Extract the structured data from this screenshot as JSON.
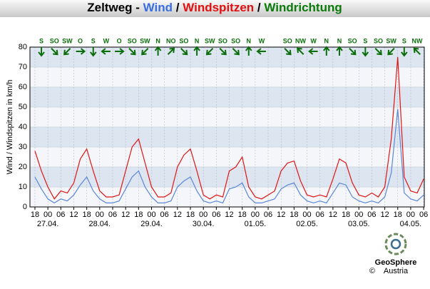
{
  "chart_data": {
    "type": "line",
    "title_parts": [
      {
        "text": "Zeltweg - ",
        "color": "#000000"
      },
      {
        "text": "Wind",
        "color": "#3a6fe0"
      },
      {
        "text": " / ",
        "color": "#000000"
      },
      {
        "text": "Windspitzen",
        "color": "#e01010"
      },
      {
        "text": " / ",
        "color": "#000000"
      },
      {
        "text": "Windrichtung",
        "color": "#0a7a0a"
      }
    ],
    "y_label": "Wind / Windspitzen in km/h",
    "x": [
      18,
      21,
      24,
      27,
      30,
      33,
      36,
      39,
      42,
      45,
      48,
      51,
      54,
      57,
      60,
      63,
      66,
      69,
      72,
      75,
      78,
      81,
      84,
      87,
      90,
      93,
      96,
      99,
      102,
      105,
      108,
      111,
      114,
      117,
      120,
      123,
      126,
      129,
      132,
      135,
      138,
      141,
      144,
      147,
      150,
      153,
      156,
      159,
      162,
      165,
      168,
      171,
      174,
      177,
      180,
      183,
      186,
      189,
      192,
      195,
      198
    ],
    "series": [
      {
        "name": "Wind",
        "color": "#5b86d8",
        "values": [
          15,
          9,
          4,
          2,
          4,
          3,
          6,
          11,
          15,
          8,
          4,
          2,
          2,
          3,
          9,
          15,
          18,
          10,
          5,
          2,
          2,
          3,
          10,
          13,
          15,
          8,
          3,
          2,
          3,
          2,
          9,
          10,
          12,
          5,
          2,
          2,
          3,
          4,
          9,
          11,
          12,
          6,
          3,
          2,
          3,
          2,
          7,
          12,
          11,
          5,
          3,
          2,
          3,
          2,
          5,
          17,
          49,
          7,
          4,
          3,
          6
        ]
      },
      {
        "name": "Windspitzen",
        "color": "#e01515",
        "values": [
          28,
          18,
          10,
          4,
          8,
          7,
          12,
          24,
          29,
          18,
          8,
          5,
          5,
          6,
          18,
          30,
          34,
          22,
          10,
          5,
          5,
          7,
          20,
          26,
          29,
          18,
          6,
          4,
          6,
          5,
          18,
          20,
          25,
          10,
          5,
          4,
          6,
          8,
          18,
          22,
          23,
          13,
          6,
          5,
          6,
          5,
          14,
          24,
          22,
          12,
          6,
          5,
          7,
          5,
          10,
          34,
          75,
          15,
          8,
          7,
          14
        ]
      }
    ],
    "xlim": [
      15.7,
      198.3
    ],
    "ylim": [
      0,
      80
    ],
    "yticks": [
      0,
      10,
      20,
      30,
      40,
      50,
      60,
      70,
      80
    ],
    "grid": true,
    "xticks": [
      {
        "value": 18,
        "label": "18"
      },
      {
        "value": 24,
        "label": "00"
      },
      {
        "value": 30,
        "label": "06"
      },
      {
        "value": 36,
        "label": "12"
      },
      {
        "value": 42,
        "label": "18"
      },
      {
        "value": 48,
        "label": "00"
      },
      {
        "value": 54,
        "label": "06"
      },
      {
        "value": 60,
        "label": "12"
      },
      {
        "value": 66,
        "label": "18"
      },
      {
        "value": 72,
        "label": "00"
      },
      {
        "value": 78,
        "label": "06"
      },
      {
        "value": 84,
        "label": "12"
      },
      {
        "value": 90,
        "label": "18"
      },
      {
        "value": 96,
        "label": "00"
      },
      {
        "value": 102,
        "label": "06"
      },
      {
        "value": 108,
        "label": "12"
      },
      {
        "value": 114,
        "label": "18"
      },
      {
        "value": 120,
        "label": "00"
      },
      {
        "value": 126,
        "label": "06"
      },
      {
        "value": 132,
        "label": "12"
      },
      {
        "value": 138,
        "label": "18"
      },
      {
        "value": 144,
        "label": "00"
      },
      {
        "value": 150,
        "label": "06"
      },
      {
        "value": 156,
        "label": "12"
      },
      {
        "value": 162,
        "label": "18"
      },
      {
        "value": 168,
        "label": "00"
      },
      {
        "value": 174,
        "label": "06"
      },
      {
        "value": 180,
        "label": "12"
      },
      {
        "value": 186,
        "label": "18"
      },
      {
        "value": 192,
        "label": "00"
      },
      {
        "value": 198,
        "label": "06"
      }
    ],
    "date_ticks": [
      {
        "value": 24,
        "label": "27.04."
      },
      {
        "value": 48,
        "label": "28.04."
      },
      {
        "value": 72,
        "label": "29.04."
      },
      {
        "value": 96,
        "label": "30.04."
      },
      {
        "value": 120,
        "label": "01.05."
      },
      {
        "value": 144,
        "label": "02.05."
      },
      {
        "value": 168,
        "label": "03.05."
      },
      {
        "value": 192,
        "label": "04.05."
      }
    ],
    "directions": {
      "x": [
        21,
        27,
        33,
        39,
        45,
        51,
        57,
        63,
        69,
        75,
        81,
        87,
        93,
        99,
        105,
        111,
        117,
        123,
        135,
        141,
        147,
        153,
        159,
        165,
        171,
        177,
        183,
        189,
        195
      ],
      "labels": [
        "S",
        "SO",
        "SW",
        "O",
        "S",
        "W",
        "O",
        "SO",
        "SW",
        "N",
        "NO",
        "SO",
        "N",
        "SW",
        "SO",
        "SO",
        "N",
        "W",
        "SO",
        "NW",
        "W",
        "N",
        "N",
        "SO",
        "S",
        "SO",
        "SW",
        "S",
        "NW"
      ]
    },
    "direction_color": "#0a6e0a"
  },
  "footer": {
    "logo": "GeoSphere",
    "sub": "Austria",
    "copyright": "©"
  }
}
